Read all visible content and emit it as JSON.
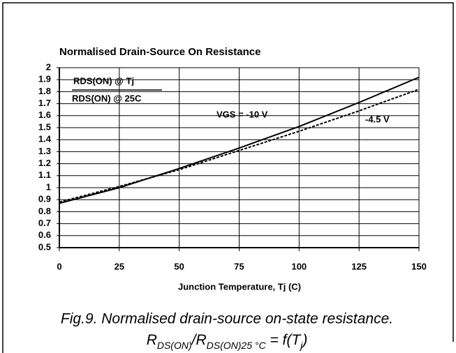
{
  "chart_data": {
    "type": "line",
    "title": "Normalised Drain-Source On Resistance",
    "xlabel": "Junction Temperature, Tj (C)",
    "x": [
      0,
      25,
      50,
      75,
      100,
      125,
      150
    ],
    "series": [
      {
        "name": "VGS = -10 V",
        "color": "#000000",
        "dashed": false,
        "values": [
          0.87,
          1.0,
          1.16,
          1.33,
          1.51,
          1.71,
          1.92
        ]
      },
      {
        "name": "-4.5 V",
        "color": "#000000",
        "dashed": true,
        "values": [
          0.88,
          1.01,
          1.15,
          1.31,
          1.47,
          1.64,
          1.82
        ]
      }
    ],
    "annotations": [
      "RDS(ON) @ Tj",
      "RDS(ON) @ 25C"
    ],
    "xlim": [
      0,
      150
    ],
    "xticks": [
      0,
      25,
      50,
      75,
      100,
      125,
      150
    ],
    "ylim": [
      0.5,
      2
    ],
    "yticks": [
      0.5,
      0.6,
      0.7,
      0.8,
      0.9,
      1,
      1.1,
      1.2,
      1.3,
      1.4,
      1.5,
      1.6,
      1.7,
      1.8,
      1.9,
      2
    ],
    "grid": true
  },
  "caption": {
    "line1": "Fig.9.  Normalised drain-source on-state resistance.",
    "line2": [
      {
        "text": "R",
        "sub": false
      },
      {
        "text": "DS(ON)",
        "sub": true
      },
      {
        "text": "/R",
        "sub": false
      },
      {
        "text": "DS(ON)25 °C",
        "sub": true
      },
      {
        "text": " = f(T",
        "sub": false
      },
      {
        "text": "j",
        "sub": true
      },
      {
        "text": ")",
        "sub": false
      }
    ]
  }
}
